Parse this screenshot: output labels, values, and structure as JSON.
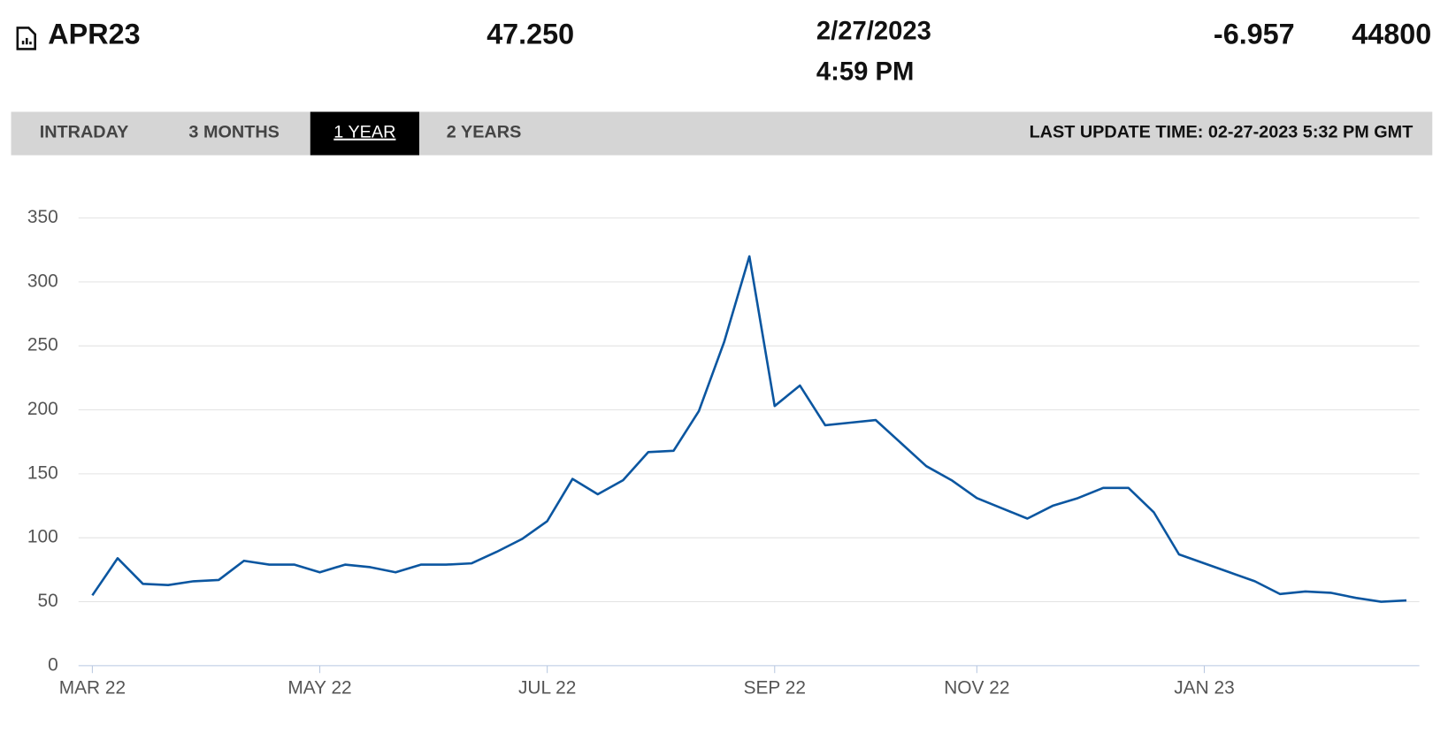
{
  "header": {
    "symbol": "APR23",
    "last": "47.250",
    "date": "2/27/2023",
    "time": "4:59 PM",
    "change": "-6.957",
    "volume": "44800"
  },
  "tabs": {
    "items": [
      "INTRADAY",
      "3 MONTHS",
      "1 YEAR",
      "2 YEARS"
    ],
    "active": 2,
    "update": "LAST UPDATE TIME: 02-27-2023 5:32 PM GMT"
  },
  "chart_data": {
    "type": "line",
    "categories": [
      "MAR 22",
      null,
      null,
      null,
      null,
      null,
      null,
      null,
      null,
      "MAY 22",
      null,
      null,
      null,
      null,
      null,
      null,
      null,
      null,
      "JUL 22",
      null,
      null,
      null,
      null,
      null,
      null,
      null,
      null,
      "SEP 22",
      null,
      null,
      null,
      null,
      null,
      null,
      null,
      "NOV 22",
      null,
      null,
      null,
      null,
      null,
      null,
      null,
      null,
      "JAN 23",
      null,
      null,
      null,
      null,
      null,
      null,
      null,
      null
    ],
    "series": [
      {
        "color": "#0b56a0",
        "values": [
          55,
          84,
          64,
          63,
          66,
          67,
          82,
          79,
          79,
          73,
          79,
          77,
          73,
          79,
          79,
          80,
          89,
          99,
          113,
          146,
          134,
          145,
          167,
          168,
          199,
          253,
          320,
          203,
          219,
          188,
          190,
          192,
          174,
          156,
          145,
          131,
          123,
          115,
          125,
          131,
          139,
          139,
          120,
          87,
          80,
          73,
          66,
          56,
          58,
          57,
          53,
          50,
          51
        ]
      }
    ],
    "ylim": [
      0,
      350
    ],
    "yticks": [
      0,
      50,
      100,
      150,
      200,
      250,
      300,
      350
    ],
    "grid": true
  }
}
